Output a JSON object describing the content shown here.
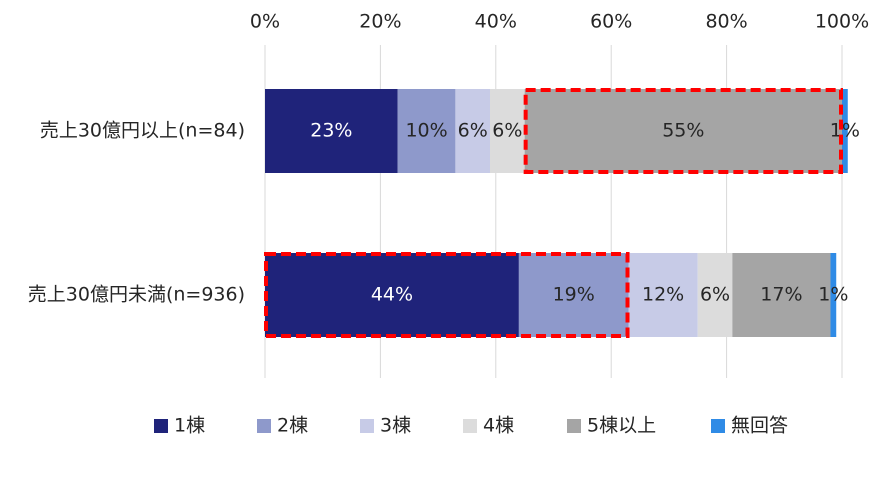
{
  "chart_data": {
    "type": "bar",
    "orientation": "horizontal",
    "stacked": true,
    "percent": true,
    "categories": [
      "売上30億円以上(n=84)",
      "売上30億円未満(n=936)"
    ],
    "series": [
      {
        "name": "1棟",
        "values": [
          23,
          44
        ],
        "labels": [
          "23%",
          "44%"
        ],
        "color": "#1f237a",
        "label_color": "#ffffff"
      },
      {
        "name": "2棟",
        "values": [
          10,
          19
        ],
        "labels": [
          "10%",
          "19%"
        ],
        "color": "#8e99cb",
        "label_color": "#262626"
      },
      {
        "name": "3棟",
        "values": [
          6,
          12
        ],
        "labels": [
          "6%",
          "12%"
        ],
        "color": "#c7cbe7",
        "label_color": "#262626"
      },
      {
        "name": "4棟",
        "values": [
          6,
          6
        ],
        "labels": [
          "6%",
          "6%"
        ],
        "color": "#dcdcdc",
        "label_color": "#262626"
      },
      {
        "name": "5棟以上",
        "values": [
          55,
          17
        ],
        "labels": [
          "55%",
          "17%"
        ],
        "color": "#a5a5a5",
        "label_color": "#262626"
      },
      {
        "name": "無回答",
        "values": [
          1,
          1
        ],
        "labels": [
          "1%",
          "1%"
        ],
        "color": "#2f8be6",
        "label_color": "#262626"
      }
    ],
    "xlim": [
      0,
      100
    ],
    "xticks": [
      0,
      20,
      40,
      60,
      80,
      100
    ],
    "xtick_labels": [
      "0%",
      "20%",
      "40%",
      "60%",
      "80%",
      "100%"
    ],
    "x_axis_position": "top",
    "grid": "vertical",
    "legend_position": "bottom",
    "highlights": [
      {
        "category_index": 0,
        "series_from": 4,
        "series_to": 4,
        "style": "red dashed box"
      },
      {
        "category_index": 1,
        "series_from": 0,
        "series_to": 1,
        "style": "red dashed box"
      }
    ]
  }
}
